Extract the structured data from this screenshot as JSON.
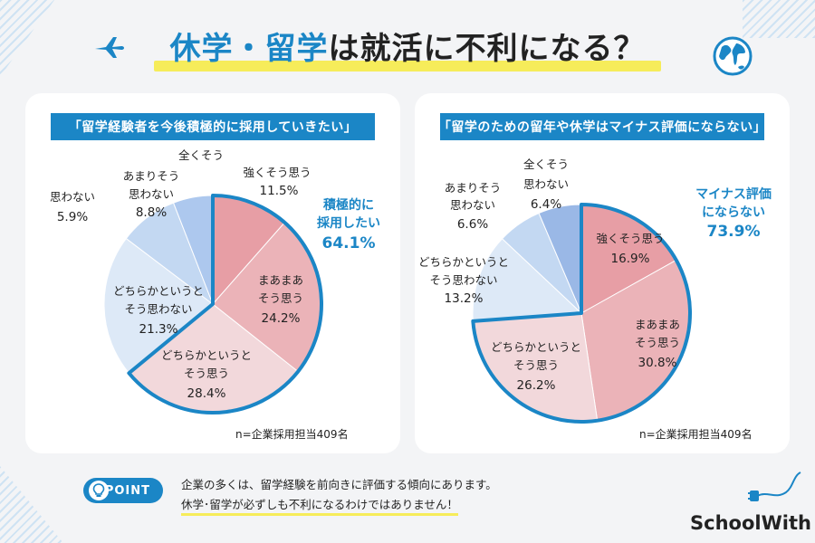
{
  "header": {
    "title_hl1": "休学",
    "title_dot": "・",
    "title_hl2": "留学",
    "title_rest": "は就活に不利になる？"
  },
  "chart_data": [
    {
      "type": "pie",
      "title": "「留学経験者を今後積極的に採用していきたい」",
      "slices": [
        {
          "label": "強くそう思う",
          "value": 11.5,
          "color": "#e79ea5"
        },
        {
          "label": "まあまあそう思う",
          "value": 24.2,
          "color": "#ebb3b8"
        },
        {
          "label": "どちらかというとそう思う",
          "value": 28.4,
          "color": "#f2d8db"
        },
        {
          "label": "どちらかというとそう思わない",
          "value": 21.3,
          "color": "#dde9f7"
        },
        {
          "label": "あまりそう思わない",
          "value": 8.8,
          "color": "#c3d8f2"
        },
        {
          "label": "思わない",
          "value": 5.9,
          "color": "#adc8ee"
        },
        {
          "label": "全くそう",
          "value": 0,
          "color": "#9ab8e6"
        }
      ],
      "highlight": {
        "label": "積極的に採用したい",
        "value": 64.1
      },
      "n_note": "n=企業採用担当409名"
    },
    {
      "type": "pie",
      "title": "「留学のための留年や休学はマイナス評価にならない」",
      "slices": [
        {
          "label": "強くそう思う",
          "value": 16.9,
          "color": "#e79ea5"
        },
        {
          "label": "まあまあそう思う",
          "value": 30.8,
          "color": "#ebb3b8"
        },
        {
          "label": "どちらかというとそう思う",
          "value": 26.2,
          "color": "#f2d8db"
        },
        {
          "label": "どちらかというとそう思わない",
          "value": 13.2,
          "color": "#dde9f7"
        },
        {
          "label": "あまりそう思わない",
          "value": 6.6,
          "color": "#c3d8f2"
        },
        {
          "label": "全くそう思わない",
          "value": 6.4,
          "color": "#9ab8e6"
        }
      ],
      "highlight": {
        "label": "マイナス評価にならない",
        "value": 73.9
      },
      "n_note": "n=企業採用担当409名"
    }
  ],
  "left_labels": {
    "s0": [
      "強くそう思う",
      "11.5%"
    ],
    "s1": [
      "まあまあ",
      "そう思う",
      "24.2%"
    ],
    "s2": [
      "どちらかというと",
      "そう思う",
      "28.4%"
    ],
    "s3": [
      "どちらかというと",
      "そう思わない",
      "21.3%"
    ],
    "s4": [
      "あまりそう",
      "思わない",
      "8.8%"
    ],
    "s5": [
      "思わない",
      "5.9%"
    ],
    "s6": [
      "全くそう"
    ],
    "hl": [
      "積極的に",
      "採用したい",
      "64.1%"
    ]
  },
  "right_labels": {
    "s0": [
      "強くそう思う",
      "16.9%"
    ],
    "s1": [
      "まあまあ",
      "そう思う",
      "30.8%"
    ],
    "s2": [
      "どちらかというと",
      "そう思う",
      "26.2%"
    ],
    "s3": [
      "どちらかというと",
      "そう思わない",
      "13.2%"
    ],
    "s4": [
      "あまりそう",
      "思わない",
      "6.6%"
    ],
    "s5": [
      "全くそう",
      "思わない",
      "6.4%"
    ],
    "hl": [
      "マイナス評価",
      "にならない",
      "73.9%"
    ]
  },
  "footer": {
    "point_label": "POINT",
    "line1": "企業の多くは、留学経験を前向きに評価する傾向にあります。",
    "line2": "休学･留学が必ずしも不利になるわけではありません！",
    "logo": "SchoolWith"
  },
  "colors": {
    "accent": "#1b86c6",
    "highlight_bar": "#f6ec5a"
  },
  "icons": [
    "airplane-icon",
    "globe-icon",
    "lightbulb-icon",
    "plug-icon"
  ]
}
